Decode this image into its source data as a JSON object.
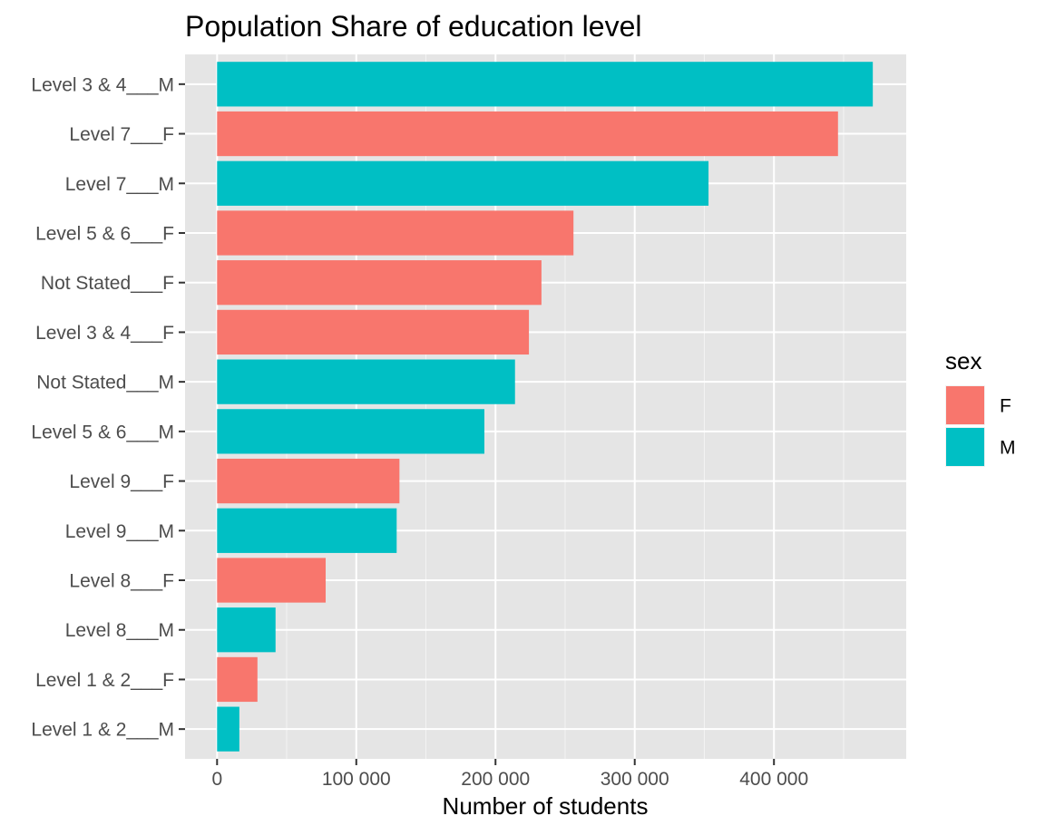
{
  "chart_data": {
    "type": "bar",
    "orientation": "horizontal",
    "title": "Population Share of education level",
    "xlabel": "Number of students",
    "ylabel": "",
    "xlim": [
      -23000,
      495000
    ],
    "x_ticks": [
      0,
      100000,
      200000,
      300000,
      400000
    ],
    "x_tick_labels": [
      "0",
      "100 000",
      "200 000",
      "300 000",
      "400 000"
    ],
    "grid": true,
    "legend_title": "sex",
    "legend_position": "right",
    "legend": [
      {
        "key": "F",
        "label": "F",
        "color": "#F8766D"
      },
      {
        "key": "M",
        "label": "M",
        "color": "#00BFC4"
      }
    ],
    "bars": [
      {
        "category": "Level 3 & 4___M",
        "sex": "M",
        "value": 471000
      },
      {
        "category": "Level 7___F",
        "sex": "F",
        "value": 446000
      },
      {
        "category": "Level 7___M",
        "sex": "M",
        "value": 353000
      },
      {
        "category": "Level 5 & 6___F",
        "sex": "F",
        "value": 256000
      },
      {
        "category": "Not Stated___F",
        "sex": "F",
        "value": 233000
      },
      {
        "category": "Level 3 & 4___F",
        "sex": "F",
        "value": 224000
      },
      {
        "category": "Not Stated___M",
        "sex": "M",
        "value": 214000
      },
      {
        "category": "Level 5 & 6___M",
        "sex": "M",
        "value": 192000
      },
      {
        "category": "Level 9___F",
        "sex": "F",
        "value": 131000
      },
      {
        "category": "Level 9___M",
        "sex": "M",
        "value": 129000
      },
      {
        "category": "Level 8___F",
        "sex": "F",
        "value": 78000
      },
      {
        "category": "Level 8___M",
        "sex": "M",
        "value": 42000
      },
      {
        "category": "Level 1 & 2___F",
        "sex": "F",
        "value": 29000
      },
      {
        "category": "Level 1 & 2___M",
        "sex": "M",
        "value": 16000
      }
    ]
  },
  "colors": {
    "panel_background": "#E5E5E5",
    "grid_major": "#FFFFFF",
    "grid_minor": "#F2F2F2",
    "tick_mark": "#333333"
  }
}
